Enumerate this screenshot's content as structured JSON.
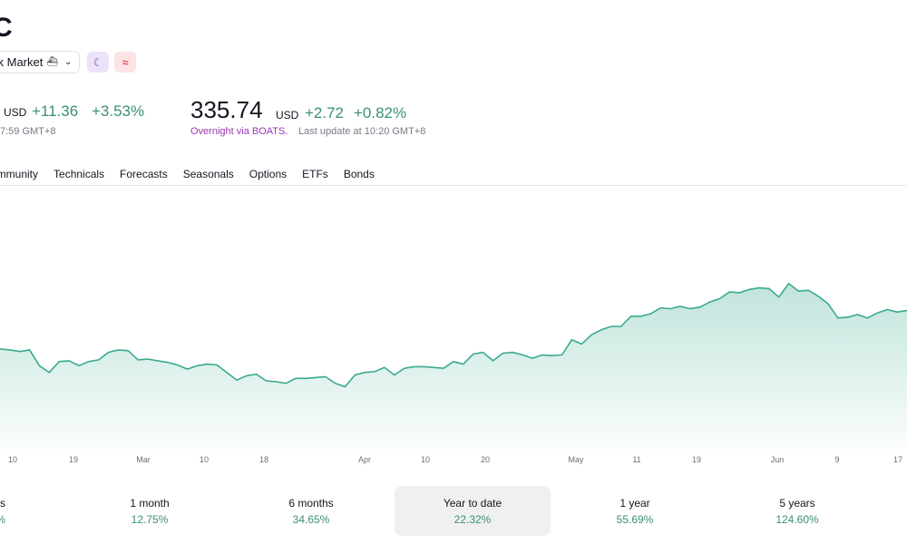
{
  "header": {
    "ticker": "C",
    "market_label": "ck Market",
    "market_icon": "building-icon",
    "moon_badge_icon": "moon-icon",
    "wave_badge_icon": "wave-icon"
  },
  "quote": {
    "left_currency": "USD",
    "left_change": "+11.36",
    "left_change_pct": "+3.53%",
    "left_time": "7:59 GMT+8",
    "price": "335.74",
    "currency": "USD",
    "change": "+2.72",
    "change_pct": "+0.82%",
    "overnight_label": "Overnight via BOATS.",
    "last_update": "Last update at 10:20 GMT+8"
  },
  "tabs": [
    "ommunity",
    "Technicals",
    "Forecasts",
    "Seasonals",
    "Options",
    "ETFs",
    "Bonds"
  ],
  "colors": {
    "line": "#3aaa8f",
    "positive": "#3a8f77",
    "overnight": "#9c36b5"
  },
  "chart_data": {
    "type": "area",
    "x_ticks": [
      "10",
      "19",
      "Mar",
      "10",
      "18",
      "Apr",
      "10",
      "20",
      "May",
      "11",
      "19",
      "Jun",
      "9",
      "17"
    ],
    "values": [
      0.595,
      0.59,
      0.58,
      0.59,
      0.495,
      0.455,
      0.52,
      0.525,
      0.495,
      0.52,
      0.53,
      0.575,
      0.59,
      0.585,
      0.53,
      0.535,
      0.525,
      0.515,
      0.5,
      0.475,
      0.495,
      0.505,
      0.5,
      0.455,
      0.41,
      0.435,
      0.445,
      0.405,
      0.4,
      0.39,
      0.42,
      0.42,
      0.425,
      0.43,
      0.39,
      0.37,
      0.44,
      0.455,
      0.46,
      0.485,
      0.44,
      0.48,
      0.49,
      0.49,
      0.485,
      0.48,
      0.52,
      0.505,
      0.565,
      0.575,
      0.525,
      0.57,
      0.575,
      0.56,
      0.54,
      0.56,
      0.555,
      0.56,
      0.65,
      0.625,
      0.68,
      0.71,
      0.73,
      0.73,
      0.79,
      0.79,
      0.805,
      0.84,
      0.835,
      0.85,
      0.835,
      0.845,
      0.875,
      0.895,
      0.935,
      0.93,
      0.95,
      0.96,
      0.955,
      0.905,
      0.985,
      0.94,
      0.945,
      0.91,
      0.865,
      0.78,
      0.785,
      0.8,
      0.78,
      0.81,
      0.83,
      0.815,
      0.825
    ]
  },
  "periods": [
    {
      "label": "s",
      "value": "%"
    },
    {
      "label": "1 month",
      "value": "12.75%"
    },
    {
      "label": "6 months",
      "value": "34.65%"
    },
    {
      "label": "Year to date",
      "value": "22.32%"
    },
    {
      "label": "1 year",
      "value": "55.69%"
    },
    {
      "label": "5 years",
      "value": "124.60%"
    }
  ]
}
